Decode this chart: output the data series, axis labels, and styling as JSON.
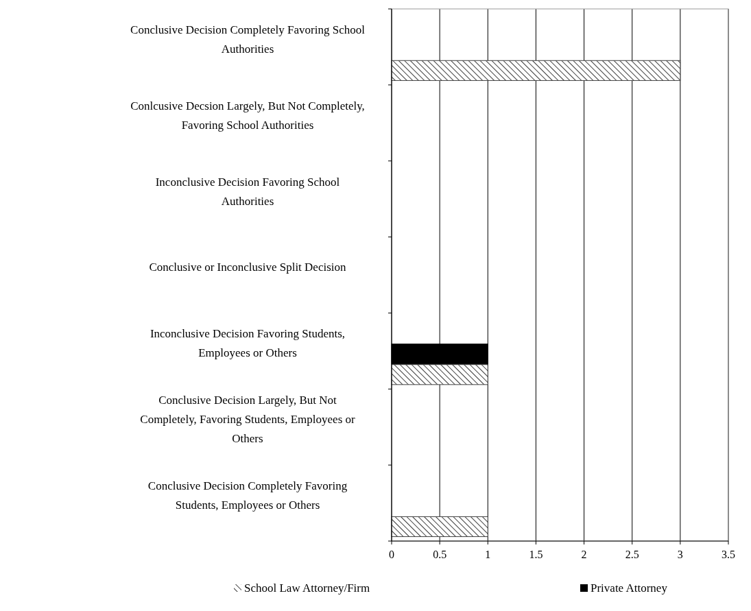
{
  "chart_data": {
    "type": "bar",
    "orientation": "horizontal",
    "categories": [
      "Conclusive Decision Completely Favoring School Authorities",
      "Conlcusive Decsion Largely, But Not Completely, Favoring School Authorities",
      "Inconclusive Decision Favoring School Authorities",
      "Conclusive or Inconclusive Split Decision",
      "Inconclusive Decision Favoring Students, Employees or Others",
      "Conclusive Decision Largely, But Not Completely, Favoring Students, Employees or Others",
      "Conclusive Decision Completely Favoring Students, Employees or Others"
    ],
    "series": [
      {
        "name": "School Law Attorney/Firm",
        "color": "#404040",
        "values": [
          3,
          0,
          0,
          0,
          1,
          0,
          1
        ]
      },
      {
        "name": "Private Attorney",
        "color": "#000000",
        "values": [
          0,
          0,
          0,
          0,
          1,
          0,
          0
        ]
      }
    ],
    "xlim": [
      0,
      3.5
    ],
    "xticks": [
      0,
      0.5,
      1,
      1.5,
      2,
      2.5,
      3,
      3.5
    ],
    "grid": "x",
    "legend": "bottom"
  }
}
